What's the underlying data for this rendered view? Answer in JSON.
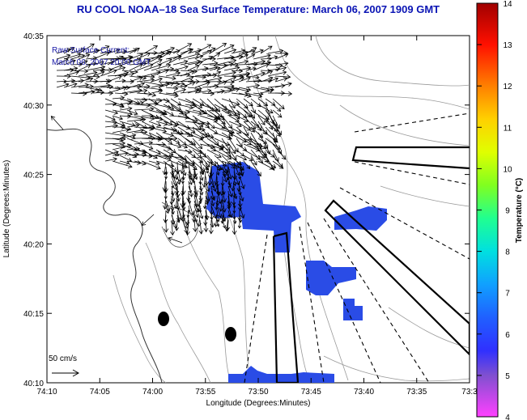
{
  "title": "RU COOL  NOAA–18  Sea Surface Temperature:  March 06, 2007 1909 GMT",
  "legend": {
    "line1": "Raw Surface Current:",
    "line2": "March 06, 2007 20:00 GMT"
  },
  "scale": {
    "label": "50 cm/s"
  },
  "axes": {
    "xlabel": "Longitude (Degrees:Minutes)",
    "ylabel": "Latitude (Degrees:Minutes)",
    "xticks": [
      "74:10",
      "74:05",
      "74:00",
      "73:55",
      "73:50",
      "73:45",
      "73:40",
      "73:35",
      "73:3"
    ],
    "yticks": [
      "40:35",
      "40:30",
      "40:25",
      "40:20",
      "40:15",
      "40:10"
    ]
  },
  "colorbar": {
    "label": "Temperature (°C)",
    "ticks": [
      "14",
      "13",
      "12",
      "11",
      "10",
      "9",
      "8",
      "7",
      "6",
      "5",
      "4"
    ],
    "min": 4,
    "max": 14
  },
  "colors": {
    "title": "#0a14b4",
    "sst_warm_patch": "#2a4ce6",
    "sst_cold_patch": "#1e3cdc"
  }
}
